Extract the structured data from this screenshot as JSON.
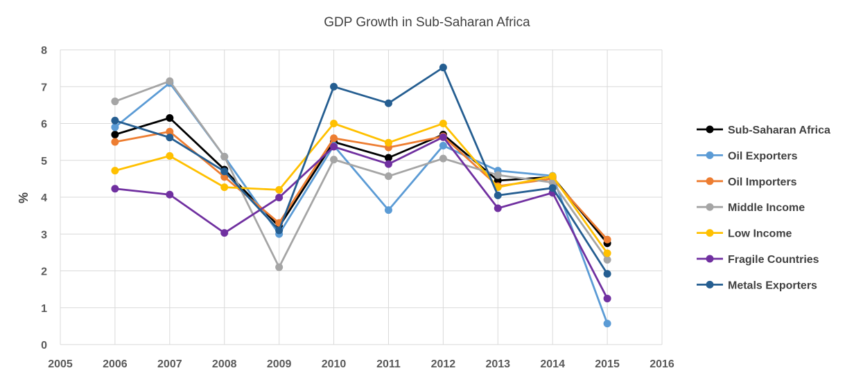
{
  "chart_data": {
    "type": "line",
    "title": "GDP Growth in Sub-Saharan Africa",
    "xlabel": "",
    "ylabel": "%",
    "xlim": [
      2005,
      2016
    ],
    "ylim": [
      0,
      8
    ],
    "x_ticks": [
      2005,
      2006,
      2007,
      2008,
      2009,
      2010,
      2011,
      2012,
      2013,
      2014,
      2015,
      2016
    ],
    "y_ticks": [
      0,
      1,
      2,
      3,
      4,
      5,
      6,
      7,
      8
    ],
    "grid": "vertical-and-horizontal",
    "legend_position": "right",
    "x": [
      2006,
      2007,
      2008,
      2009,
      2010,
      2011,
      2012,
      2013,
      2014,
      2015
    ],
    "series": [
      {
        "name": "Sub-Saharan Africa",
        "color": "#000000",
        "values": [
          5.7,
          6.15,
          4.75,
          3.2,
          5.5,
          5.07,
          5.7,
          4.45,
          4.55,
          2.75
        ]
      },
      {
        "name": "Oil Exporters",
        "color": "#5b9bd5",
        "values": [
          5.9,
          7.1,
          5.1,
          3.0,
          5.4,
          3.65,
          5.4,
          4.72,
          4.58,
          0.57
        ]
      },
      {
        "name": "Oil Importers",
        "color": "#ed7d31",
        "values": [
          5.5,
          5.78,
          4.55,
          3.3,
          5.6,
          5.35,
          5.65,
          4.3,
          4.5,
          2.85
        ]
      },
      {
        "name": "Middle Income",
        "color": "#a5a5a5",
        "values": [
          6.6,
          7.15,
          5.1,
          2.1,
          5.02,
          4.57,
          5.05,
          4.6,
          4.4,
          2.3
        ]
      },
      {
        "name": "Low Income",
        "color": "#ffc000",
        "values": [
          4.72,
          5.12,
          4.27,
          4.2,
          6.0,
          5.48,
          6.0,
          4.27,
          4.57,
          2.48
        ]
      },
      {
        "name": "Fragile Countries",
        "color": "#7030a0",
        "values": [
          4.23,
          4.07,
          3.03,
          3.99,
          5.37,
          4.9,
          5.63,
          3.7,
          4.12,
          1.25
        ]
      },
      {
        "name": "Metals Exporters",
        "color": "#255e91",
        "values": [
          6.08,
          5.62,
          4.7,
          3.1,
          7.0,
          6.55,
          7.52,
          4.05,
          4.25,
          1.92
        ]
      }
    ]
  }
}
